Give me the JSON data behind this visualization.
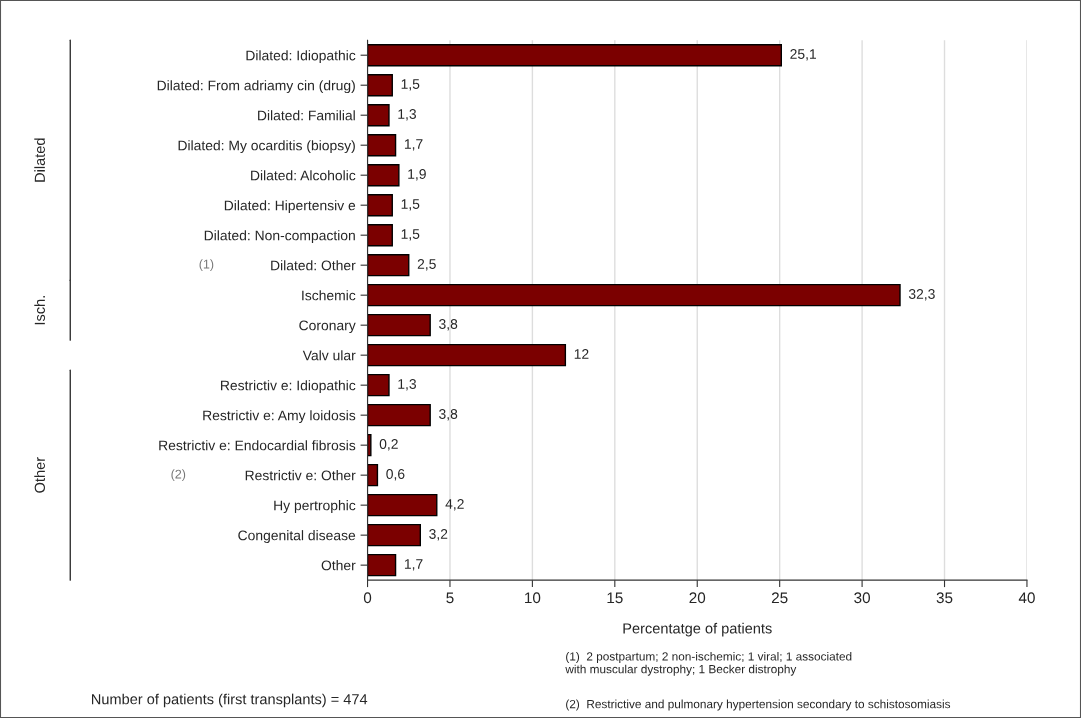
{
  "chart_data": {
    "type": "bar",
    "orientation": "horizontal",
    "categories": [
      "Dilated: Idiopathic",
      "Dilated: From adriamy cin (drug)",
      "Dilated: Familial",
      "Dilated: My ocarditis (biopsy)",
      "Dilated: Alcoholic",
      "Dilated: Hipertensiv e",
      "Dilated: Non-compaction",
      "Dilated: Other",
      "Ischemic",
      "Coronary",
      "Valv ular",
      "Restrictiv e: Idiopathic",
      "Restrictiv e: Amy loidosis",
      "Restrictiv e: Endocardial fibrosis",
      "Restrictiv e: Other",
      "Hy pertrophic",
      "Congenital disease",
      "Other"
    ],
    "values": [
      25.1,
      1.5,
      1.3,
      1.7,
      1.9,
      1.5,
      1.5,
      2.5,
      32.3,
      3.8,
      12,
      1.3,
      3.8,
      0.2,
      0.6,
      4.2,
      3.2,
      1.7
    ],
    "value_labels": [
      "25,1",
      "1,5",
      "1,3",
      "1,7",
      "1,9",
      "1,5",
      "1,5",
      "2,5",
      "32,3",
      "3,8",
      "12",
      "1,3",
      "3,8",
      "0,2",
      "0,6",
      "4,2",
      "3,2",
      "1,7"
    ],
    "color": "#7b0000",
    "xlabel": "Percentatge of patients",
    "xlim": [
      0,
      40
    ],
    "xticks": [
      0,
      5,
      10,
      15,
      20,
      25,
      30,
      35,
      40
    ],
    "grid": "x",
    "annotations": [
      "Dilated",
      "Isch.",
      "Other",
      "(1)",
      "(2)",
      "(1)  2 postpartum; 2 non-ischemic; 1 viral; 1 associated with muscular dystrophy; 1 Becker distrophy",
      "(2)  Restrictive and pulmonary hypertension secondary to schistosomiasis",
      "Number of patients (first transplants) = 474"
    ]
  }
}
